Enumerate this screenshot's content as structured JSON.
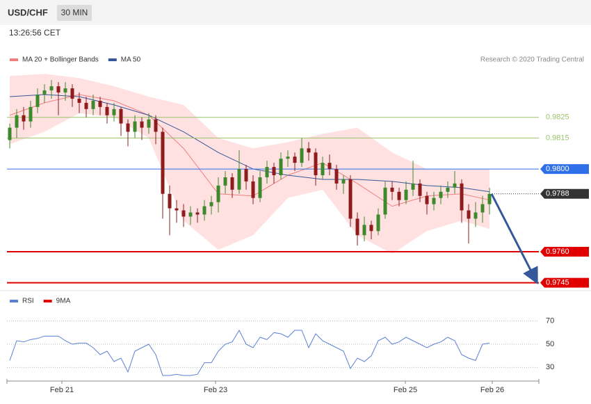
{
  "header": {
    "symbol": "USD/CHF",
    "interval": "30 MIN",
    "time": "13:26:56 CET"
  },
  "chart_data": [
    {
      "type": "candlestick",
      "credit": "Research © 2020 Trading Central",
      "xlim": [
        -0.4,
        76.1
      ],
      "ylim": [
        0.97422,
        0.98481
      ],
      "up_color": "#3d8a2c",
      "down_color": "#8e1c1c",
      "ohlc": [
        [
          0.9814,
          0.9822,
          0.981,
          0.982
        ],
        [
          0.982,
          0.9829,
          0.9815,
          0.9826
        ],
        [
          0.9826,
          0.983,
          0.9819,
          0.9823
        ],
        [
          0.9823,
          0.9833,
          0.982,
          0.983
        ],
        [
          0.983,
          0.9839,
          0.9827,
          0.9836
        ],
        [
          0.9836,
          0.9841,
          0.9832,
          0.9838
        ],
        [
          0.9838,
          0.9843,
          0.9834,
          0.984
        ],
        [
          0.984,
          0.9842,
          0.9826,
          0.9837
        ],
        [
          0.9837,
          0.9842,
          0.9833,
          0.9839
        ],
        [
          0.9839,
          0.9841,
          0.983,
          0.9834
        ],
        [
          0.9834,
          0.9837,
          0.9827,
          0.9832
        ],
        [
          0.9832,
          0.9835,
          0.9825,
          0.9829
        ],
        [
          0.9829,
          0.9836,
          0.9826,
          0.9833
        ],
        [
          0.9833,
          0.9835,
          0.9826,
          0.983
        ],
        [
          0.983,
          0.9832,
          0.9822,
          0.9826
        ],
        [
          0.9826,
          0.9832,
          0.9823,
          0.9829
        ],
        [
          0.9829,
          0.983,
          0.9816,
          0.9822
        ],
        [
          0.9822,
          0.9824,
          0.9811,
          0.9818
        ],
        [
          0.9818,
          0.9826,
          0.9815,
          0.9823
        ],
        [
          0.9823,
          0.9825,
          0.9814,
          0.982
        ],
        [
          0.982,
          0.9827,
          0.9817,
          0.9824
        ],
        [
          0.9824,
          0.9826,
          0.9812,
          0.9818
        ],
        [
          0.9818,
          0.982,
          0.9776,
          0.9788
        ],
        [
          0.9788,
          0.9792,
          0.9768,
          0.9781
        ],
        [
          0.9781,
          0.9785,
          0.9774,
          0.978
        ],
        [
          0.978,
          0.9783,
          0.9772,
          0.9777
        ],
        [
          0.9777,
          0.9782,
          0.9773,
          0.9779
        ],
        [
          0.9779,
          0.9781,
          0.9774,
          0.9778
        ],
        [
          0.9778,
          0.9785,
          0.9775,
          0.9782
        ],
        [
          0.9782,
          0.9787,
          0.9778,
          0.9784
        ],
        [
          0.9784,
          0.9796,
          0.9779,
          0.9792
        ],
        [
          0.9792,
          0.9799,
          0.9788,
          0.9796
        ],
        [
          0.9796,
          0.9798,
          0.9786,
          0.979
        ],
        [
          0.979,
          0.9809,
          0.9788,
          0.98
        ],
        [
          0.98,
          0.9802,
          0.979,
          0.9794
        ],
        [
          0.9794,
          0.9797,
          0.9783,
          0.9786
        ],
        [
          0.9786,
          0.9799,
          0.9784,
          0.9796
        ],
        [
          0.9796,
          0.9804,
          0.9793,
          0.9801
        ],
        [
          0.9801,
          0.9803,
          0.9793,
          0.9797
        ],
        [
          0.9797,
          0.9808,
          0.9795,
          0.9805
        ],
        [
          0.9805,
          0.9809,
          0.9801,
          0.9806
        ],
        [
          0.9806,
          0.9808,
          0.9799,
          0.9803
        ],
        [
          0.9803,
          0.9815,
          0.9801,
          0.981
        ],
        [
          0.981,
          0.9813,
          0.9804,
          0.9808
        ],
        [
          0.9808,
          0.981,
          0.9792,
          0.9797
        ],
        [
          0.9797,
          0.9806,
          0.9795,
          0.9803
        ],
        [
          0.9803,
          0.9807,
          0.9797,
          0.98
        ],
        [
          0.98,
          0.9802,
          0.979,
          0.9793
        ],
        [
          0.9793,
          0.9797,
          0.9788,
          0.9795
        ],
        [
          0.9795,
          0.9797,
          0.9772,
          0.9776
        ],
        [
          0.9776,
          0.9779,
          0.9763,
          0.9768
        ],
        [
          0.9768,
          0.9777,
          0.9765,
          0.9773
        ],
        [
          0.9773,
          0.9775,
          0.9766,
          0.977
        ],
        [
          0.977,
          0.9781,
          0.9768,
          0.9778
        ],
        [
          0.9778,
          0.9794,
          0.9776,
          0.9791
        ],
        [
          0.9791,
          0.9794,
          0.9785,
          0.9789
        ],
        [
          0.9789,
          0.9791,
          0.9782,
          0.9785
        ],
        [
          0.9785,
          0.9794,
          0.9783,
          0.979
        ],
        [
          0.979,
          0.9804,
          0.9787,
          0.9793
        ],
        [
          0.9793,
          0.9795,
          0.9784,
          0.9787
        ],
        [
          0.9787,
          0.9789,
          0.9778,
          0.9783
        ],
        [
          0.9783,
          0.9789,
          0.978,
          0.9786
        ],
        [
          0.9786,
          0.9792,
          0.9783,
          0.9789
        ],
        [
          0.9789,
          0.9794,
          0.9786,
          0.9791
        ],
        [
          0.9791,
          0.9799,
          0.9788,
          0.9793
        ],
        [
          0.9793,
          0.9795,
          0.9774,
          0.978
        ],
        [
          0.978,
          0.9783,
          0.9764,
          0.9776
        ],
        [
          0.9776,
          0.9784,
          0.9772,
          0.9779
        ],
        [
          0.9779,
          0.9787,
          0.9774,
          0.9783
        ],
        [
          0.9783,
          0.9791,
          0.9778,
          0.9788
        ]
      ],
      "series": [
        {
          "name": "MA 20 + Bollinger Bands",
          "color": "#f08080",
          "band_color": "#ffd9d9",
          "x": [
            0,
            5,
            10,
            15,
            20,
            25,
            30,
            35,
            40,
            45,
            50,
            55,
            60,
            65,
            69
          ],
          "values": [
            0.9826,
            0.9832,
            0.9836,
            0.9833,
            0.9826,
            0.981,
            0.9788,
            0.9787,
            0.9797,
            0.9803,
            0.9793,
            0.9782,
            0.9787,
            0.9788,
            0.9785
          ],
          "upper": [
            0.9845,
            0.9846,
            0.9844,
            0.984,
            0.9835,
            0.9831,
            0.9815,
            0.981,
            0.9813,
            0.9817,
            0.982,
            0.9808,
            0.98,
            0.98,
            0.98
          ],
          "lower": [
            0.9812,
            0.9818,
            0.9827,
            0.9825,
            0.9815,
            0.9775,
            0.9761,
            0.9768,
            0.9786,
            0.979,
            0.9768,
            0.9759,
            0.977,
            0.9775,
            0.9771
          ]
        },
        {
          "name": "MA 50",
          "color": "#35589a",
          "x": [
            0,
            5,
            10,
            15,
            20,
            25,
            30,
            35,
            40,
            45,
            50,
            55,
            60,
            65,
            69
          ],
          "values": [
            0.9835,
            0.9836,
            0.9835,
            0.9831,
            0.9826,
            0.9818,
            0.9808,
            0.98,
            0.9797,
            0.9795,
            0.9795,
            0.9794,
            0.9792,
            0.9791,
            0.9789
          ]
        }
      ],
      "levels": [
        {
          "value": 0.9825,
          "color": "#9cc46a",
          "style": "text"
        },
        {
          "value": 0.9815,
          "color": "#9cc46a",
          "style": "text"
        },
        {
          "value": 0.98,
          "label": "0.9800",
          "color": "#2f6fe8",
          "style": "tag"
        },
        {
          "value": 0.9788,
          "color": "#333333",
          "style": "dotted"
        },
        {
          "value": 0.976,
          "label": "0.9760",
          "color": "#e00000",
          "style": "tag"
        },
        {
          "value": 0.9745,
          "color": "#e00000",
          "style": "tag"
        }
      ],
      "arrow_color": "#35589a"
    },
    {
      "type": "line",
      "xlim": [
        -0.4,
        76.1
      ],
      "ylim": [
        20,
        80
      ],
      "yticks": [
        30,
        50,
        70
      ],
      "xticks": [
        {
          "value": 7.5,
          "label": "Feb 21"
        },
        {
          "value": 29.6,
          "label": "Feb 23"
        },
        {
          "value": 56.9,
          "label": "Feb 25"
        },
        {
          "value": 69.4,
          "label": "Feb 26"
        }
      ],
      "series": [
        {
          "name": "RSI",
          "color": "#5b7fd6",
          "values": [
            36,
            53,
            52,
            54,
            55,
            57,
            57,
            57,
            53,
            50,
            51,
            51,
            47,
            41,
            44,
            35,
            38,
            26,
            44,
            47,
            50,
            41,
            23,
            23,
            24,
            23,
            23,
            24,
            34,
            34,
            44,
            50,
            52,
            62,
            50,
            47,
            56,
            54,
            60,
            59,
            56,
            62,
            62,
            47,
            59,
            53,
            50,
            47,
            44,
            29,
            38,
            35,
            40,
            53,
            56,
            50,
            52,
            56,
            53,
            50,
            47,
            50,
            52,
            56,
            53,
            41,
            38,
            36,
            50,
            51
          ]
        },
        {
          "name": "9MA",
          "color": "#e00000"
        }
      ]
    }
  ]
}
